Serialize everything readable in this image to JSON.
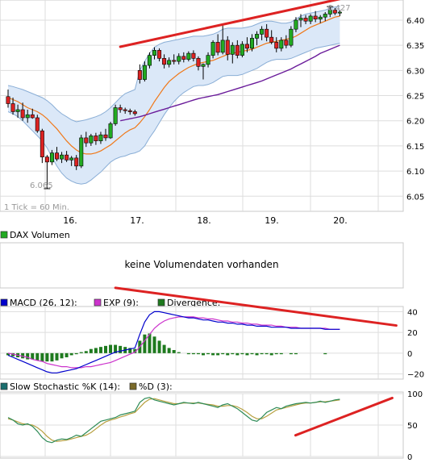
{
  "chart_data": [
    {
      "type": "candlestick",
      "title": "",
      "xlabel": "",
      "ylabel": "",
      "x_ticks": [
        "16.",
        "17.",
        "18.",
        "19.",
        "20."
      ],
      "y_ticks": [
        "6.050",
        "6.100",
        "6.150",
        "6.200",
        "6.250",
        "6.300",
        "6.350",
        "6.400"
      ],
      "ylim": [
        6.02,
        6.44
      ],
      "annotations": {
        "low": "6.065",
        "high": "6.427",
        "tick_note": "1 Tick = 60 Min."
      },
      "colors": {
        "up": "#22aa22",
        "down": "#dd2222",
        "band_fill": "#dbe8f8",
        "band_line": "#8aaed6",
        "sma_short": "#f07818",
        "sma_long": "#6a1b9a",
        "trend": "#dd2222"
      },
      "candles": [
        [
          6.248,
          6.262,
          6.226,
          6.234
        ],
        [
          6.234,
          6.246,
          6.212,
          6.218
        ],
        [
          6.218,
          6.232,
          6.206,
          6.222
        ],
        [
          6.222,
          6.236,
          6.2,
          6.206
        ],
        [
          6.206,
          6.222,
          6.196,
          6.212
        ],
        [
          6.212,
          6.224,
          6.204,
          6.206
        ],
        [
          6.206,
          6.212,
          6.176,
          6.18
        ],
        [
          6.18,
          6.184,
          6.116,
          6.128
        ],
        [
          6.128,
          6.132,
          6.065,
          6.118
        ],
        [
          6.118,
          6.142,
          6.112,
          6.136
        ],
        [
          6.136,
          6.148,
          6.12,
          6.124
        ],
        [
          6.124,
          6.138,
          6.116,
          6.132
        ],
        [
          6.132,
          6.14,
          6.118,
          6.122
        ],
        [
          6.122,
          6.13,
          6.11,
          6.126
        ],
        [
          6.126,
          6.132,
          6.102,
          6.11
        ],
        [
          6.11,
          6.172,
          6.106,
          6.166
        ],
        [
          6.166,
          6.178,
          6.148,
          6.156
        ],
        [
          6.156,
          6.174,
          6.15,
          6.17
        ],
        [
          6.17,
          6.176,
          6.152,
          6.16
        ],
        [
          6.16,
          6.178,
          6.154,
          6.172
        ],
        [
          6.172,
          6.184,
          6.16,
          6.166
        ],
        [
          6.166,
          6.198,
          6.164,
          6.194
        ],
        [
          6.194,
          6.232,
          6.19,
          6.226
        ],
        [
          6.226,
          6.232,
          6.216,
          6.222
        ],
        [
          6.222,
          6.226,
          6.214,
          6.22
        ],
        [
          6.22,
          6.224,
          6.212,
          6.218
        ],
        [
          6.218,
          6.222,
          6.21,
          6.214
        ],
        [
          6.3,
          6.312,
          6.274,
          6.282
        ],
        [
          6.282,
          6.318,
          6.278,
          6.31
        ],
        [
          6.31,
          6.336,
          6.304,
          6.33
        ],
        [
          6.33,
          6.346,
          6.322,
          6.34
        ],
        [
          6.34,
          6.344,
          6.318,
          6.324
        ],
        [
          6.324,
          6.332,
          6.304,
          6.312
        ],
        [
          6.312,
          6.326,
          6.306,
          6.32
        ],
        [
          6.32,
          6.332,
          6.312,
          6.318
        ],
        [
          6.318,
          6.334,
          6.312,
          6.328
        ],
        [
          6.328,
          6.336,
          6.316,
          6.322
        ],
        [
          6.322,
          6.338,
          6.318,
          6.334
        ],
        [
          6.334,
          6.34,
          6.318,
          6.324
        ],
        [
          6.324,
          6.328,
          6.3,
          6.308
        ],
        [
          6.308,
          6.314,
          6.282,
          6.312
        ],
        [
          6.312,
          6.336,
          6.306,
          6.33
        ],
        [
          6.33,
          6.36,
          6.324,
          6.356
        ],
        [
          6.356,
          6.372,
          6.33,
          6.336
        ],
        [
          6.336,
          6.392,
          6.332,
          6.36
        ],
        [
          6.36,
          6.368,
          6.32,
          6.332
        ],
        [
          6.332,
          6.356,
          6.314,
          6.35
        ],
        [
          6.35,
          6.36,
          6.324,
          6.33
        ],
        [
          6.33,
          6.358,
          6.326,
          6.352
        ],
        [
          6.352,
          6.366,
          6.336,
          6.344
        ],
        [
          6.344,
          6.372,
          6.338,
          6.364
        ],
        [
          6.364,
          6.378,
          6.35,
          6.372
        ],
        [
          6.372,
          6.388,
          6.36,
          6.382
        ],
        [
          6.382,
          6.392,
          6.358,
          6.366
        ],
        [
          6.366,
          6.38,
          6.352,
          6.356
        ],
        [
          6.356,
          6.366,
          6.336,
          6.344
        ],
        [
          6.344,
          6.366,
          6.338,
          6.36
        ],
        [
          6.36,
          6.37,
          6.344,
          6.35
        ],
        [
          6.35,
          6.388,
          6.346,
          6.382
        ],
        [
          6.382,
          6.406,
          6.376,
          6.4
        ],
        [
          6.4,
          6.412,
          6.386,
          6.404
        ],
        [
          6.404,
          6.41,
          6.392,
          6.398
        ],
        [
          6.398,
          6.412,
          6.392,
          6.408
        ],
        [
          6.408,
          6.418,
          6.396,
          6.402
        ],
        [
          6.402,
          6.41,
          6.394,
          6.406
        ],
        [
          6.406,
          6.416,
          6.398,
          6.412
        ],
        [
          6.412,
          6.427,
          6.406,
          6.42
        ],
        [
          6.42,
          6.424,
          6.41,
          6.414
        ],
        [
          6.414,
          6.42,
          6.408,
          6.416
        ]
      ],
      "bollinger_upper": [
        6.27,
        6.268,
        6.265,
        6.262,
        6.258,
        6.254,
        6.25,
        6.246,
        6.24,
        6.232,
        6.222,
        6.214,
        6.208,
        6.202,
        6.198,
        6.2,
        6.202,
        6.205,
        6.208,
        6.212,
        6.218,
        6.226,
        6.236,
        6.246,
        6.254,
        6.258,
        6.262,
        6.3,
        6.318,
        6.334,
        6.346,
        6.352,
        6.356,
        6.358,
        6.36,
        6.362,
        6.364,
        6.366,
        6.368,
        6.368,
        6.368,
        6.37,
        6.372,
        6.376,
        6.382,
        6.384,
        6.384,
        6.384,
        6.384,
        6.386,
        6.388,
        6.392,
        6.396,
        6.398,
        6.398,
        6.396,
        6.394,
        6.394,
        6.396,
        6.402,
        6.408,
        6.412,
        6.414,
        6.416,
        6.418,
        6.42,
        6.424,
        6.426,
        6.428
      ],
      "bollinger_lower": [
        6.218,
        6.214,
        6.208,
        6.2,
        6.19,
        6.18,
        6.17,
        6.16,
        6.146,
        6.128,
        6.11,
        6.096,
        6.086,
        6.08,
        6.076,
        6.074,
        6.076,
        6.082,
        6.09,
        6.098,
        6.108,
        6.118,
        6.124,
        6.128,
        6.13,
        6.134,
        6.136,
        6.14,
        6.15,
        6.166,
        6.18,
        6.196,
        6.212,
        6.226,
        6.238,
        6.248,
        6.256,
        6.262,
        6.268,
        6.27,
        6.27,
        6.272,
        6.276,
        6.282,
        6.288,
        6.29,
        6.29,
        6.29,
        6.292,
        6.296,
        6.3,
        6.304,
        6.31,
        6.316,
        6.32,
        6.322,
        6.322,
        6.322,
        6.324,
        6.328,
        6.332,
        6.336,
        6.34,
        6.344,
        6.346,
        6.348,
        6.35,
        6.352,
        6.354
      ],
      "sma_short": [
        6.246,
        6.242,
        6.238,
        6.232,
        6.226,
        6.222,
        6.218,
        6.212,
        6.204,
        6.194,
        6.184,
        6.172,
        6.16,
        6.15,
        6.142,
        6.136,
        6.134,
        6.134,
        6.136,
        6.14,
        6.146,
        6.152,
        6.16,
        6.168,
        6.176,
        6.182,
        6.186,
        6.196,
        6.208,
        6.222,
        6.238,
        6.252,
        6.266,
        6.278,
        6.286,
        6.294,
        6.3,
        6.306,
        6.31,
        6.314,
        6.316,
        6.318,
        6.32,
        6.324,
        6.328,
        6.332,
        6.334,
        6.336,
        6.338,
        6.34,
        6.342,
        6.346,
        6.35,
        6.354,
        6.356,
        6.358,
        6.36,
        6.362,
        6.364,
        6.368,
        6.374,
        6.38,
        6.386,
        6.39,
        6.394,
        6.398,
        6.402,
        6.406,
        6.408
      ],
      "sma_long_start_index": 23,
      "sma_long": [
        6.2,
        6.202,
        6.204,
        6.206,
        6.208,
        6.211,
        6.214,
        6.217,
        6.22,
        6.223,
        6.226,
        6.229,
        6.232,
        6.235,
        6.238,
        6.241,
        6.244,
        6.246,
        6.248,
        6.25,
        6.252,
        6.255,
        6.258,
        6.261,
        6.264,
        6.267,
        6.27,
        6.273,
        6.276,
        6.279,
        6.283,
        6.287,
        6.291,
        6.295,
        6.299,
        6.303,
        6.308,
        6.313,
        6.318,
        6.323,
        6.328,
        6.334,
        6.338,
        6.342,
        6.346,
        6.35
      ],
      "trend_line": {
        "start": [
          23,
          6.347
        ],
        "end": [
          68,
          6.442
        ]
      }
    },
    {
      "type": "bar",
      "legend": [
        {
          "name": "DAX Volumen",
          "color": "#22aa22"
        }
      ],
      "message": "keine Volumendaten vorhanden"
    },
    {
      "type": "line",
      "legend": [
        {
          "name": "MACD (26, 12):",
          "color": "#0000cc"
        },
        {
          "name": "EXP (9):",
          "color": "#cc33cc"
        },
        {
          "name": "Divergence:",
          "color": "#1e7a1e"
        }
      ],
      "y_ticks": [
        "40",
        "20",
        "0",
        "−20"
      ],
      "ylim": [
        -25,
        45
      ],
      "series": [
        {
          "name": "MACD (26, 12):",
          "values": [
            -2,
            -4,
            -6,
            -8,
            -10,
            -12,
            -14,
            -16,
            -18,
            -19,
            -19,
            -18,
            -17,
            -16,
            -15,
            -13,
            -11,
            -9,
            -7,
            -5,
            -3,
            -1,
            1,
            2,
            3,
            4,
            5,
            18,
            30,
            37,
            40,
            40,
            39,
            38,
            37,
            36,
            35,
            34,
            34,
            33,
            32,
            32,
            31,
            30,
            30,
            29,
            29,
            28,
            28,
            27,
            27,
            26,
            26,
            26,
            25,
            25,
            25,
            25,
            24,
            24,
            24,
            24,
            24,
            24,
            24,
            23,
            23,
            23,
            23
          ]
        },
        {
          "name": "EXP (9):",
          "values": [
            0,
            -1,
            -2,
            -3,
            -4,
            -6,
            -7,
            -8,
            -10,
            -11,
            -12,
            -13,
            -13,
            -14,
            -14,
            -14,
            -13,
            -13,
            -12,
            -11,
            -10,
            -9,
            -7,
            -5,
            -3,
            -1,
            1,
            6,
            12,
            18,
            24,
            28,
            31,
            33,
            34,
            35,
            35,
            35,
            35,
            34,
            34,
            33,
            33,
            32,
            31,
            31,
            30,
            30,
            29,
            29,
            28,
            28,
            27,
            27,
            27,
            26,
            26,
            25,
            25,
            25,
            24,
            24,
            24,
            24,
            24,
            24,
            23,
            23,
            23
          ]
        },
        {
          "name": "Divergence:",
          "values": [
            -2,
            -3,
            -4,
            -5,
            -6,
            -6,
            -7,
            -8,
            -8,
            -8,
            -7,
            -5,
            -4,
            -2,
            -1,
            1,
            2,
            4,
            5,
            6,
            7,
            8,
            8,
            7,
            6,
            5,
            4,
            12,
            18,
            19,
            16,
            12,
            8,
            5,
            3,
            1,
            0,
            -1,
            -1,
            -1,
            -2,
            -1,
            -2,
            -2,
            -1,
            -2,
            -1,
            -2,
            -1,
            -2,
            -1,
            -2,
            -1,
            -1,
            -2,
            -1,
            -1,
            0,
            -1,
            -1,
            0,
            0,
            0,
            0,
            0,
            -1,
            0,
            0,
            0
          ]
        }
      ],
      "trend_line": {
        "start": [
          22,
          63
        ],
        "end": [
          68,
          29
        ]
      }
    },
    {
      "type": "line",
      "legend": [
        {
          "name": "Slow Stochastic %K (14):",
          "color": "#1a6e6e"
        },
        {
          "name": "%D (3):",
          "color": "#7a6a2a"
        }
      ],
      "y_ticks": [
        "100",
        "50",
        "0"
      ],
      "ylim": [
        0,
        100
      ],
      "series": [
        {
          "name": "Slow Stochastic %K (14):",
          "values": [
            62,
            58,
            52,
            50,
            52,
            48,
            40,
            30,
            24,
            22,
            26,
            28,
            27,
            30,
            34,
            32,
            38,
            44,
            50,
            56,
            58,
            60,
            62,
            66,
            68,
            70,
            72,
            86,
            92,
            94,
            90,
            88,
            86,
            84,
            82,
            84,
            86,
            85,
            84,
            86,
            84,
            82,
            80,
            78,
            82,
            84,
            80,
            76,
            70,
            64,
            58,
            56,
            62,
            70,
            74,
            78,
            76,
            80,
            82,
            84,
            85,
            86,
            85,
            86,
            88,
            86,
            88,
            90,
            91
          ]
        },
        {
          "name": "%D (3):",
          "values": [
            60,
            58,
            55,
            52,
            51,
            50,
            46,
            40,
            32,
            26,
            24,
            25,
            26,
            28,
            30,
            32,
            34,
            38,
            44,
            50,
            55,
            58,
            60,
            63,
            65,
            68,
            70,
            78,
            86,
            91,
            92,
            90,
            88,
            86,
            84,
            84,
            85,
            85,
            85,
            85,
            84,
            83,
            82,
            80,
            80,
            81,
            81,
            79,
            75,
            70,
            64,
            60,
            60,
            64,
            69,
            74,
            76,
            78,
            80,
            82,
            84,
            85,
            85,
            86,
            87,
            87,
            88,
            89,
            90
          ]
        }
      ],
      "trend_line": {
        "start": [
          49,
          44
        ],
        "end": [
          68,
          93
        ]
      }
    }
  ]
}
